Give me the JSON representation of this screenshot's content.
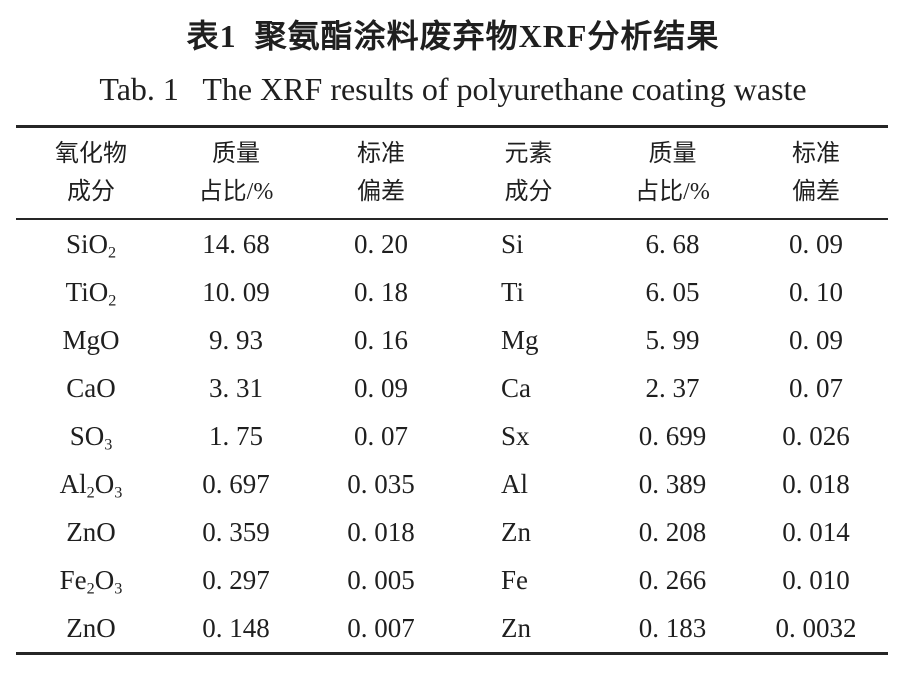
{
  "caption": {
    "zh": "表1  聚氨酯涂料废弃物XRF分析结果",
    "en": "Tab. 1   The XRF results of polyurethane coating waste"
  },
  "table": {
    "headers": [
      {
        "line1": "氧化物",
        "line2": "成分"
      },
      {
        "line1": "质量",
        "line2": "占比/%"
      },
      {
        "line1": "标准",
        "line2": "偏差"
      },
      {
        "line1": "元素",
        "line2": "成分"
      },
      {
        "line1": "质量",
        "line2": "占比/%"
      },
      {
        "line1": "标准",
        "line2": "偏差"
      }
    ],
    "rows": [
      {
        "oxide": "SiO2",
        "oxide_mass": "14. 68",
        "oxide_sd": "0. 20",
        "element": "Si",
        "element_mass": "6. 68",
        "element_sd": "0. 09"
      },
      {
        "oxide": "TiO2",
        "oxide_mass": "10. 09",
        "oxide_sd": "0. 18",
        "element": "Ti",
        "element_mass": "6. 05",
        "element_sd": "0. 10"
      },
      {
        "oxide": "MgO",
        "oxide_mass": "9. 93",
        "oxide_sd": "0. 16",
        "element": "Mg",
        "element_mass": "5. 99",
        "element_sd": "0. 09"
      },
      {
        "oxide": "CaO",
        "oxide_mass": "3. 31",
        "oxide_sd": "0. 09",
        "element": "Ca",
        "element_mass": "2. 37",
        "element_sd": "0. 07"
      },
      {
        "oxide": "SO3",
        "oxide_mass": "1. 75",
        "oxide_sd": "0. 07",
        "element": "Sx",
        "element_mass": "0. 699",
        "element_sd": "0. 026"
      },
      {
        "oxide": "Al2O3",
        "oxide_mass": "0. 697",
        "oxide_sd": "0. 035",
        "element": "Al",
        "element_mass": "0. 389",
        "element_sd": "0. 018"
      },
      {
        "oxide": "ZnO",
        "oxide_mass": "0. 359",
        "oxide_sd": "0. 018",
        "element": "Zn",
        "element_mass": "0. 208",
        "element_sd": "0. 014"
      },
      {
        "oxide": "Fe2O3",
        "oxide_mass": "0. 297",
        "oxide_sd": "0. 005",
        "element": "Fe",
        "element_mass": "0. 266",
        "element_sd": "0. 010"
      },
      {
        "oxide": "ZnO",
        "oxide_mass": "0. 148",
        "oxide_sd": "0. 007",
        "element": "Zn",
        "element_mass": "0. 183",
        "element_sd": "0. 0032"
      }
    ]
  },
  "colors": {
    "text": "#1f1f1f",
    "rule": "#262626",
    "background": "#ffffff"
  }
}
